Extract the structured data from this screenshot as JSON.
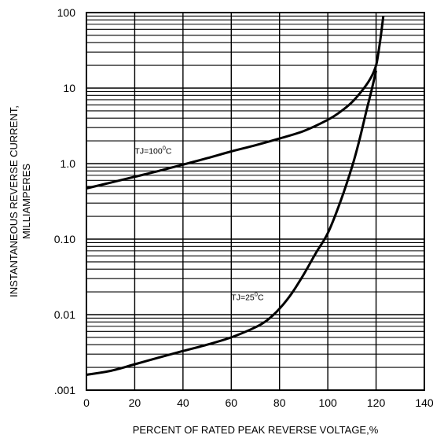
{
  "chart_data": {
    "type": "line",
    "title": "",
    "xlabel": "PERCENT OF RATED PEAK REVERSE VOLTAGE,%",
    "ylabel_lines": [
      "INSTANTANEOUS REVERSE CURRENT,",
      "MILLIAMPERES"
    ],
    "x_scale": "linear",
    "y_scale": "log",
    "xlim": [
      0,
      140
    ],
    "ylim": [
      0.001,
      100
    ],
    "x_ticks": [
      0,
      20,
      40,
      60,
      80,
      100,
      120,
      140
    ],
    "x_tick_labels": [
      "0",
      "20",
      "40",
      "60",
      "80",
      "100",
      "120",
      "140"
    ],
    "y_ticks": [
      0.001,
      0.01,
      0.1,
      1,
      10,
      100
    ],
    "y_tick_labels": [
      ".001",
      "0.01",
      "0.10",
      "1.0",
      "10",
      "100"
    ],
    "grid": {
      "horizontal": true,
      "vertical": true,
      "y_minor": true
    },
    "series": [
      {
        "name": "TJ=100°C",
        "label_base": "TJ=100",
        "label_sup": "0",
        "label_suffix": "C",
        "x": [
          0,
          10,
          20,
          30,
          40,
          50,
          60,
          70,
          80,
          90,
          100,
          105,
          110,
          115,
          118,
          120,
          121,
          122,
          123
        ],
        "y": [
          0.47,
          0.56,
          0.67,
          0.8,
          0.97,
          1.18,
          1.45,
          1.75,
          2.15,
          2.7,
          3.8,
          4.8,
          6.5,
          10,
          14,
          20,
          30,
          50,
          90
        ]
      },
      {
        "name": "TJ=25°C",
        "label_base": "TJ=25",
        "label_sup": "0",
        "label_suffix": "C",
        "x": [
          0,
          10,
          20,
          30,
          40,
          50,
          60,
          70,
          75,
          80,
          85,
          90,
          95,
          100,
          105,
          110,
          113,
          116,
          118,
          120
        ],
        "y": [
          0.0016,
          0.0018,
          0.0022,
          0.0027,
          0.0033,
          0.004,
          0.005,
          0.0068,
          0.0085,
          0.012,
          0.019,
          0.034,
          0.065,
          0.12,
          0.3,
          0.9,
          2.0,
          5.0,
          9.0,
          17
        ]
      }
    ]
  }
}
